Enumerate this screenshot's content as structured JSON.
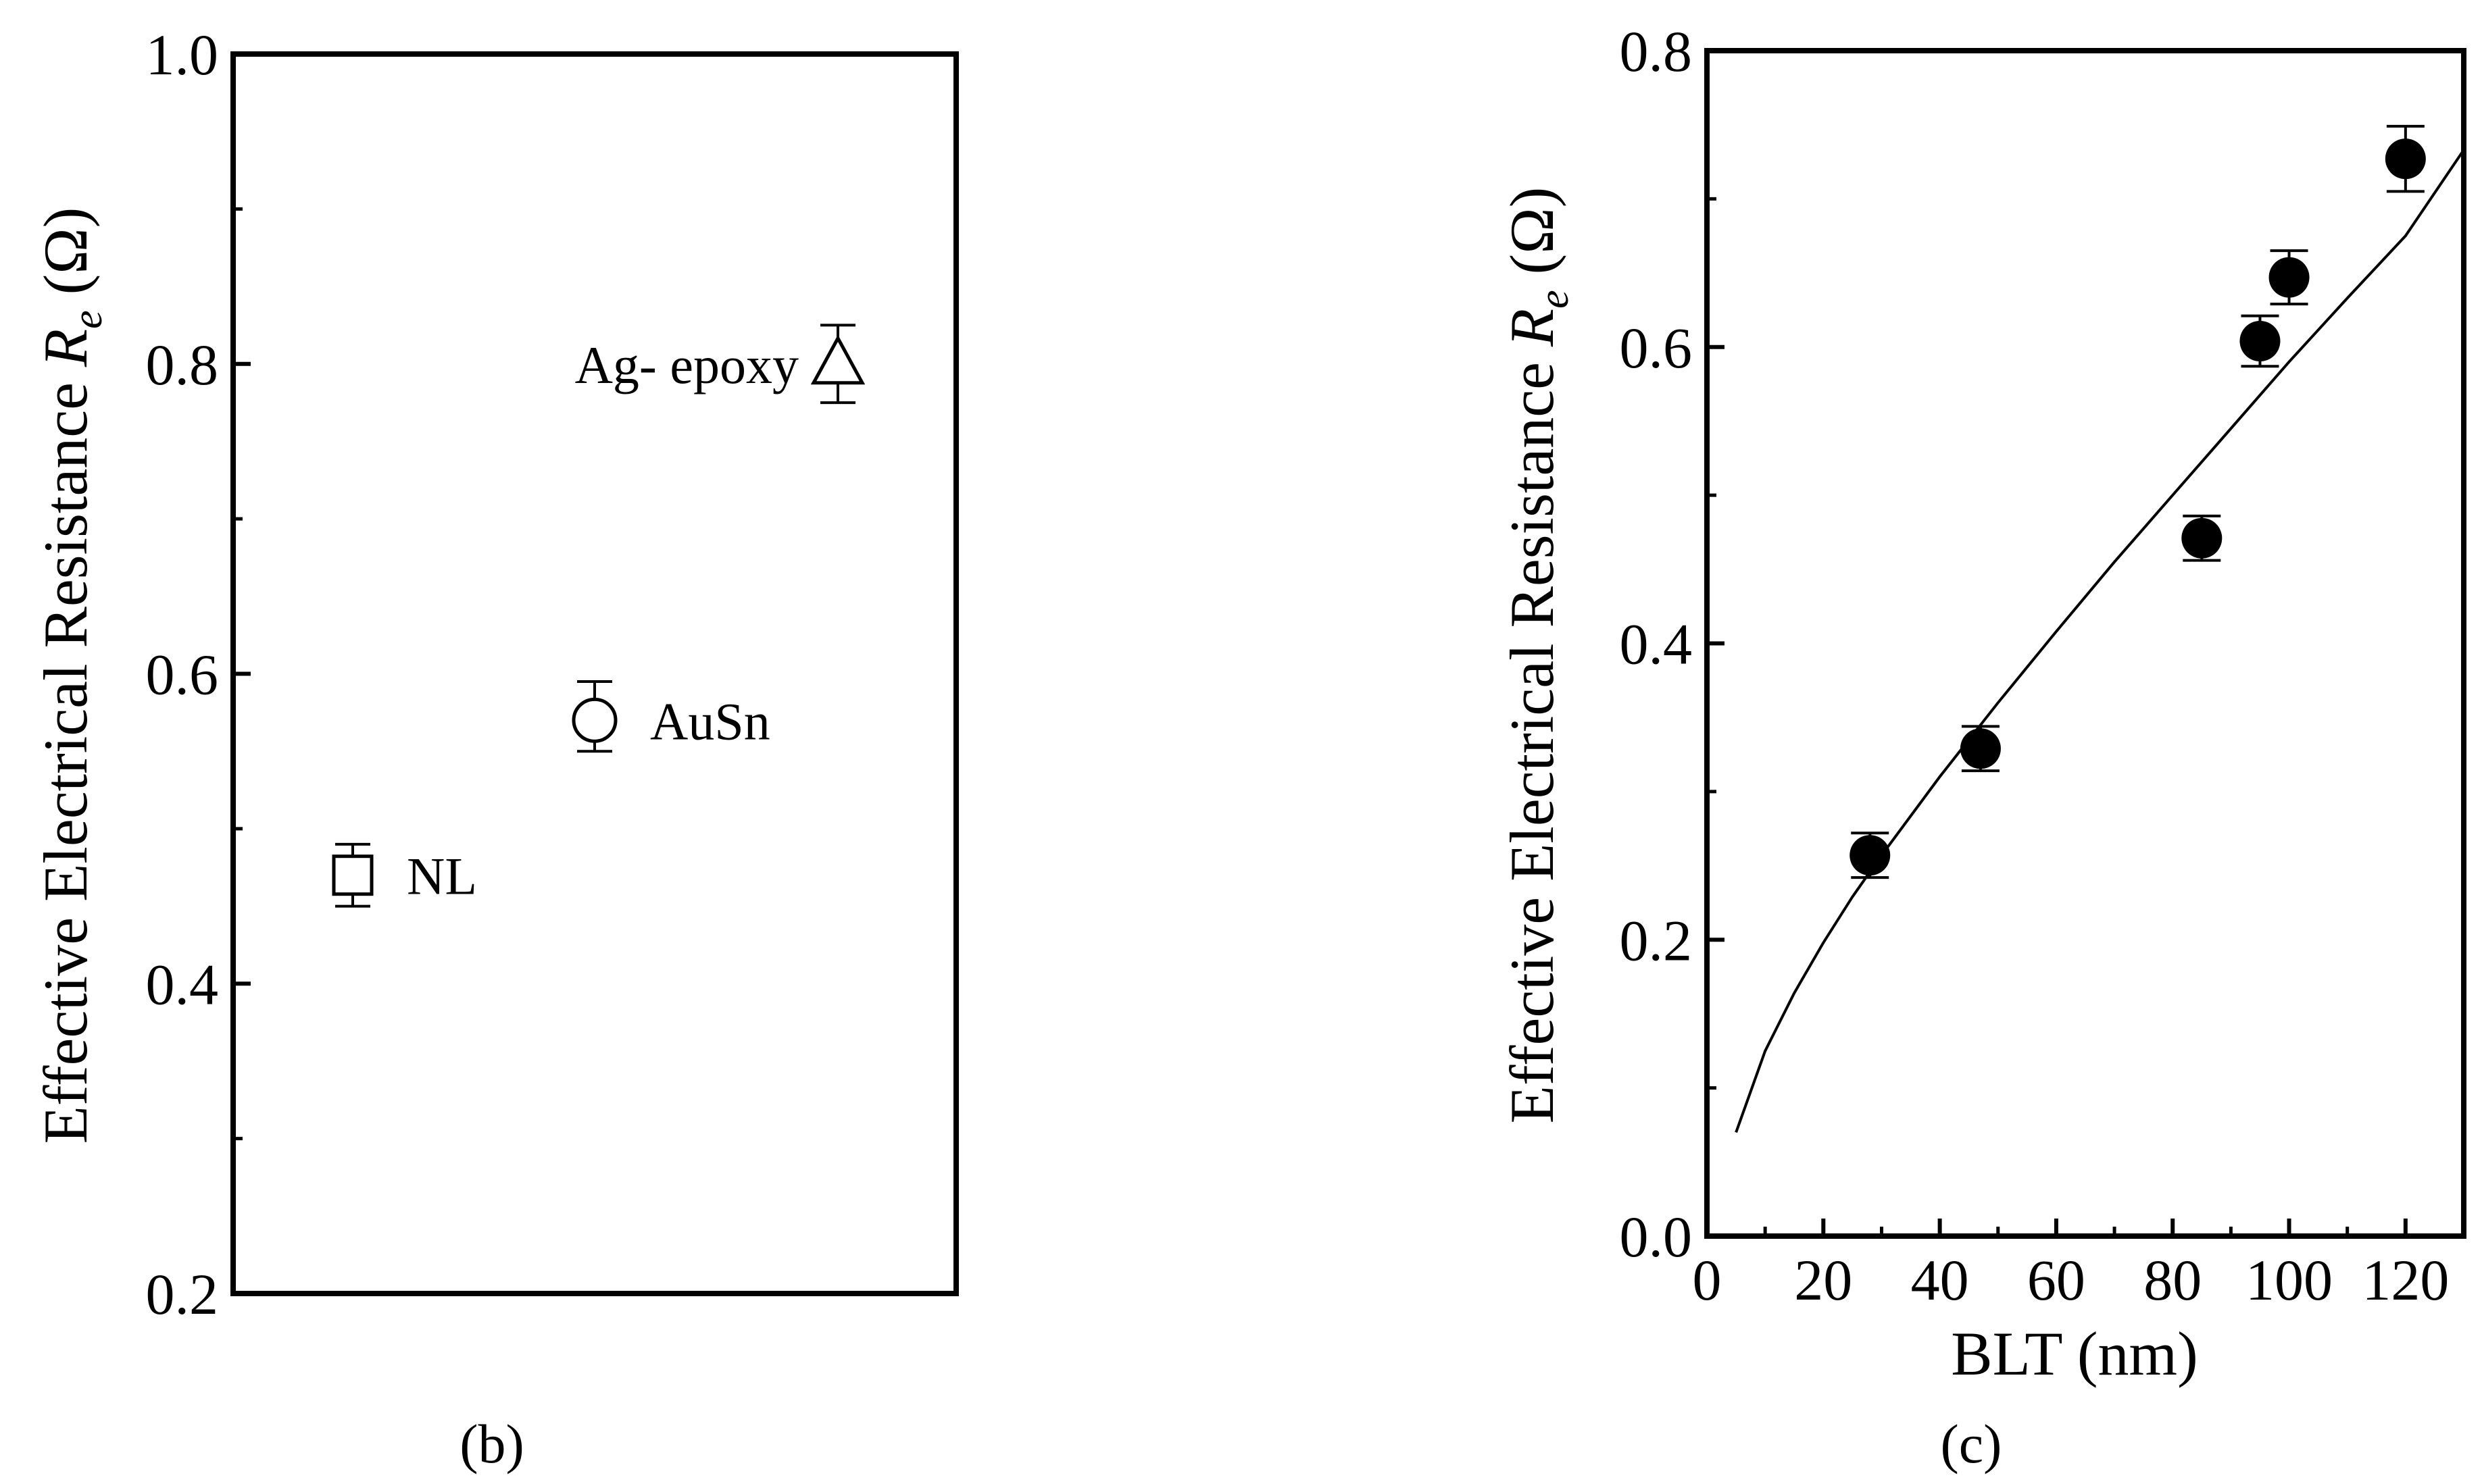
{
  "panels": [
    {
      "panel_label": "(b)",
      "ylabel_prefix": "Effective Electrical Resistance ",
      "ylabel_symbol": "R",
      "ylabel_subscript": "e",
      "ylabel_unit": " (Ω)"
    },
    {
      "panel_label": "(c)",
      "ylabel_prefix": "Effective Electrical Resistance ",
      "ylabel_symbol": "R",
      "ylabel_subscript": "e",
      "ylabel_unit": " (Ω)",
      "xlabel": "BLT (nm)"
    }
  ],
  "chart_data": [
    {
      "type": "scatter",
      "panel": "(b)",
      "xlabel": "",
      "ylabel": "Effective Electrical Resistance Re (Ω)",
      "ylim": [
        0.2,
        1.0
      ],
      "y_ticks": [
        "0.2",
        "0.4",
        "0.6",
        "0.8",
        "1.0"
      ],
      "grid": false,
      "points": [
        {
          "name": "NL",
          "marker": "square",
          "y": 0.47,
          "err_low": 0.02,
          "err_high": 0.02
        },
        {
          "name": "AuSn",
          "marker": "circle",
          "y": 0.57,
          "err_low": 0.02,
          "err_high": 0.025
        },
        {
          "name": "Ag- epoxy",
          "marker": "triangle",
          "y": 0.8,
          "err_low": 0.025,
          "err_high": 0.025
        }
      ],
      "colors": {
        "marker": "#000000",
        "axes": "#000000"
      }
    },
    {
      "type": "scatter",
      "panel": "(c)",
      "xlabel": "BLT (nm)",
      "ylabel": "Effective Electrical Resistance Re (Ω)",
      "xlim": [
        0,
        130
      ],
      "ylim": [
        0.0,
        0.8
      ],
      "x_ticks": [
        "0",
        "20",
        "40",
        "60",
        "80",
        "100",
        "120"
      ],
      "y_ticks": [
        "0.0",
        "0.2",
        "0.4",
        "0.6",
        "0.8"
      ],
      "grid": false,
      "series": [
        {
          "marker": "filled-circle",
          "x": [
            28,
            47,
            85,
            95,
            100,
            120
          ],
          "y": [
            0.257,
            0.329,
            0.471,
            0.604,
            0.647,
            0.727
          ],
          "err": [
            0.015,
            0.015,
            0.015,
            0.017,
            0.018,
            0.022
          ]
        }
      ],
      "fit_curve": {
        "x": [
          5,
          10,
          15,
          20,
          25,
          30,
          40,
          50,
          60,
          70,
          80,
          90,
          100,
          110,
          120,
          130
        ],
        "y": [
          0.07,
          0.125,
          0.164,
          0.198,
          0.229,
          0.257,
          0.31,
          0.36,
          0.408,
          0.455,
          0.5,
          0.545,
          0.59,
          0.633,
          0.675,
          0.733
        ]
      },
      "colors": {
        "marker": "#000000",
        "line": "#000000",
        "axes": "#000000"
      }
    }
  ]
}
